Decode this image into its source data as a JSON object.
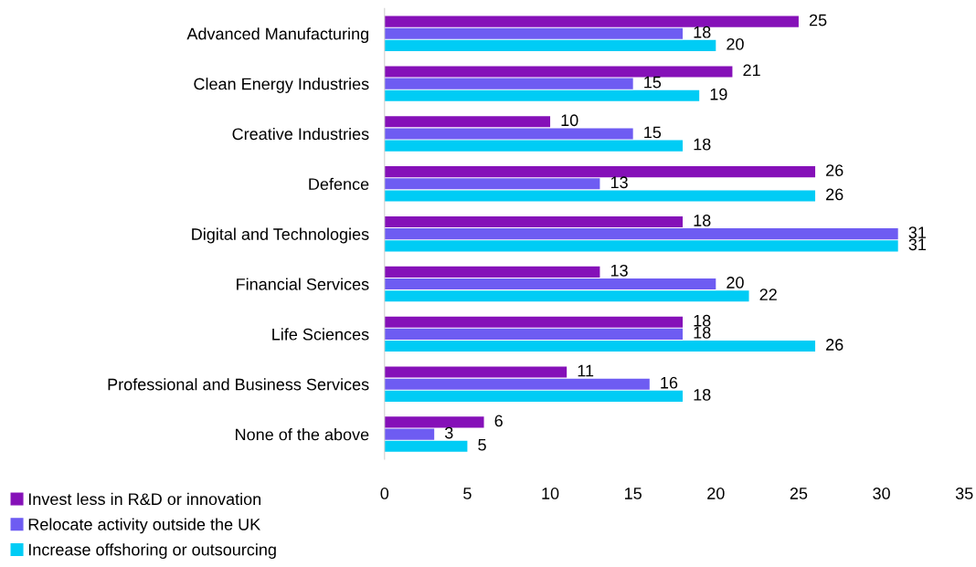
{
  "chart_data": {
    "type": "bar",
    "orientation": "horizontal",
    "categories": [
      "Advanced Manufacturing",
      "Clean Energy Industries",
      "Creative Industries",
      "Defence",
      "Digital and Technologies",
      "Financial Services",
      "Life Sciences",
      "Professional and Business Services",
      "None of the above"
    ],
    "series": [
      {
        "name": "Invest less in R&D or innovation",
        "color": "#8510b8",
        "values": [
          25,
          21,
          10,
          26,
          18,
          13,
          18,
          11,
          6
        ]
      },
      {
        "name": "Relocate activity outside the UK",
        "color": "#6e5cf2",
        "values": [
          18,
          15,
          15,
          13,
          31,
          20,
          18,
          16,
          3
        ]
      },
      {
        "name": "Increase offshoring or outsourcing",
        "color": "#00ccf5",
        "values": [
          20,
          19,
          18,
          26,
          31,
          22,
          26,
          18,
          5
        ]
      }
    ],
    "xlim": [
      0,
      35
    ],
    "xticks": [
      0,
      5,
      10,
      15,
      20,
      25,
      30,
      35
    ],
    "data_labels": true,
    "grid": false,
    "legend": "bottom left"
  }
}
